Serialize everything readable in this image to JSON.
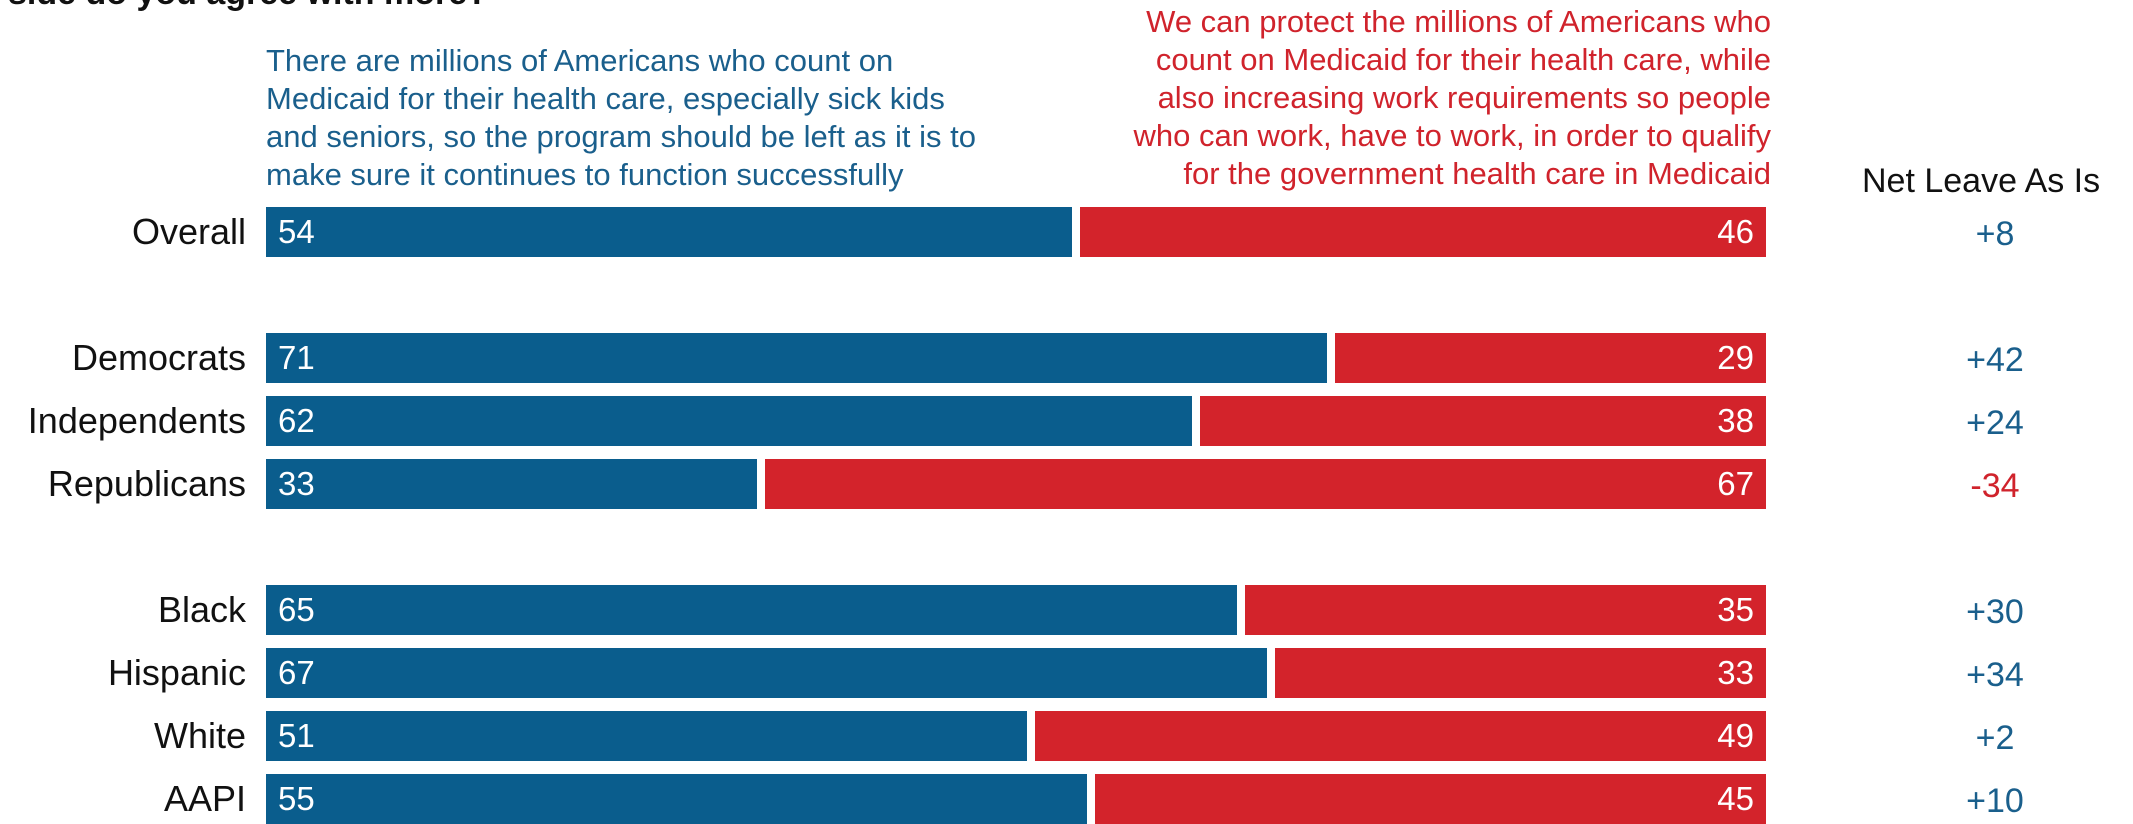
{
  "question_fragment": "side do you agree with more?",
  "left_statement": "There are millions of Americans who count on\nMedicaid for their health care, especially sick kids\nand seniors, so the program should be left as it is to\nmake sure it continues to function successfully",
  "right_statement": "We can protect the millions of Americans who\ncount on Medicaid for their health care, while\nalso increasing work requirements so people\nwho can work, have to work, in order to qualify\nfor the government health care in Medicaid",
  "net_header": "Net Leave As Is",
  "colors": {
    "leave": "#0a5d8d",
    "work": "#d3232b"
  },
  "chart_data": {
    "type": "bar",
    "orientation": "horizontal-stacked",
    "categories": [
      "Overall",
      "Democrats",
      "Independents",
      "Republicans",
      "Black",
      "Hispanic",
      "White",
      "AAPI"
    ],
    "series": [
      {
        "values": [
          54,
          71,
          62,
          33,
          65,
          67,
          51,
          55
        ]
      },
      {
        "values": [
          46,
          29,
          38,
          67,
          35,
          33,
          49,
          45
        ]
      }
    ],
    "net": [
      "+8",
      "+42",
      "+24",
      "-34",
      "+30",
      "+34",
      "+2",
      "+10"
    ],
    "xlim": [
      0,
      100
    ]
  }
}
